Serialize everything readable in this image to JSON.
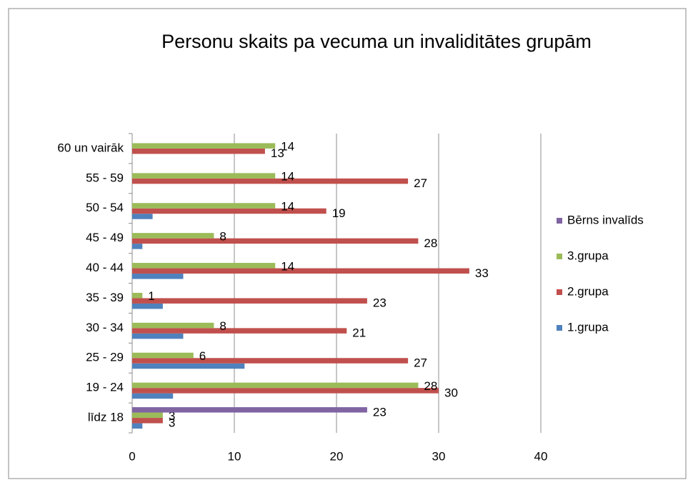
{
  "chart_data": {
    "type": "hbar",
    "title": "Personu skaits pa vecuma un invaliditātes grupām",
    "categories": [
      "līdz 18",
      "19 - 24",
      "25 - 29",
      "30 - 34",
      "35 - 39",
      "40 - 44",
      "45 - 49",
      "50 - 54",
      "55 - 59",
      "60 un vairāk"
    ],
    "series": [
      {
        "name": "1.grupa",
        "color": "#4f81bd",
        "labels": false,
        "values": [
          1,
          4,
          11,
          5,
          3,
          5,
          1,
          2,
          0,
          0
        ]
      },
      {
        "name": "2.grupa",
        "color": "#c0504d",
        "labels": true,
        "values": [
          3,
          30,
          27,
          21,
          23,
          33,
          28,
          19,
          27,
          13
        ]
      },
      {
        "name": "3.grupa",
        "color": "#9bbb59",
        "labels": true,
        "values": [
          3,
          28,
          6,
          8,
          1,
          14,
          8,
          14,
          14,
          14
        ]
      },
      {
        "name": "Bērns invalīds",
        "color": "#8064a2",
        "labels": true,
        "values": [
          23,
          null,
          null,
          null,
          null,
          null,
          null,
          null,
          null,
          null
        ]
      }
    ],
    "xlim": [
      0,
      40
    ],
    "xticks": [
      0,
      10,
      20,
      30,
      40
    ],
    "grid": true,
    "legend": "right"
  }
}
